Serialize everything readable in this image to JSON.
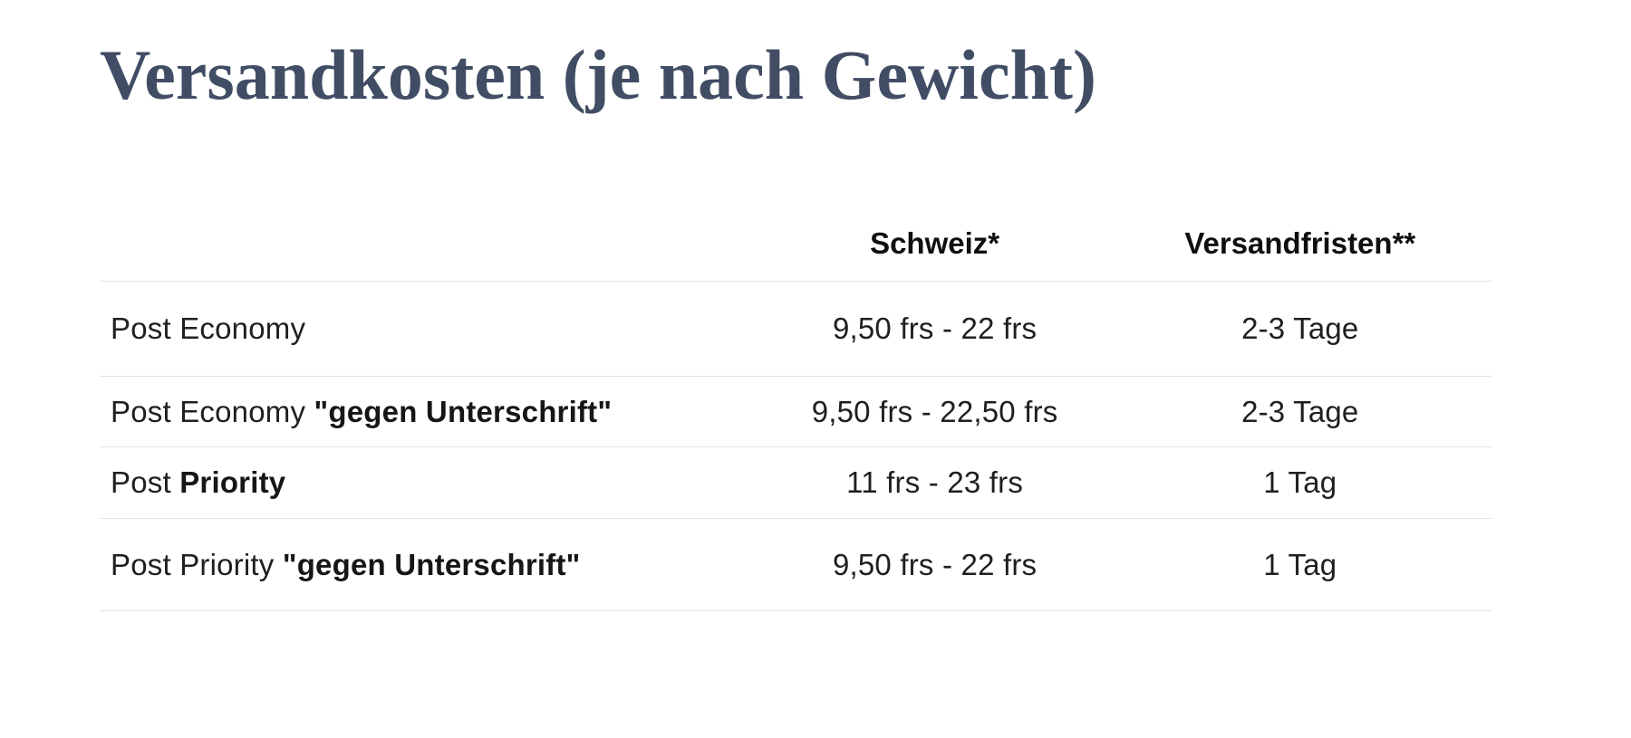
{
  "page": {
    "title": "Versandkosten (je nach Gewicht)"
  },
  "table": {
    "headers": {
      "schweiz": "Schweiz*",
      "versandfristen": "Versandfristen**"
    },
    "rows": [
      {
        "label_regular": "Post Economy",
        "label_bold": "",
        "schweiz": "9,50 frs - 22 frs",
        "versandfrist": "2-3 Tage"
      },
      {
        "label_regular": "Post Economy ",
        "label_bold": "\"gegen Unterschrift\"",
        "schweiz": "9,50 frs - 22,50 frs",
        "versandfrist": "2-3 Tage"
      },
      {
        "label_regular": "Post ",
        "label_bold": "Priority",
        "schweiz": "11 frs - 23 frs",
        "versandfrist": "1 Tag"
      },
      {
        "label_regular": "Post Priority ",
        "label_bold": "\"gegen Unterschrift\"",
        "schweiz": "9,50 frs - 22 frs",
        "versandfrist": "1 Tag"
      }
    ]
  },
  "colors": {
    "title": "#404d64",
    "body_text": "#1f1f1f",
    "header_text": "#0f0f0f",
    "border": "#e4e4e4",
    "background": "#ffffff"
  }
}
